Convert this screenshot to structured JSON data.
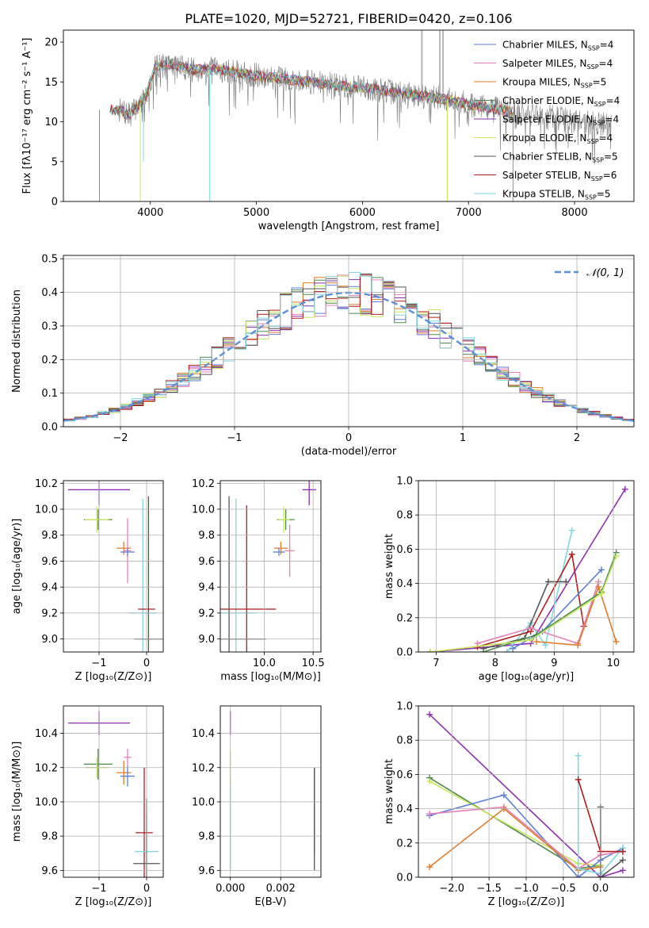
{
  "figure": {
    "title": "PLATE=1020, MJD=52721, FIBERID=0420, z=0.106"
  },
  "colors": {
    "chabrier_miles": "#5b7fd9",
    "salpeter_miles": "#e67fb8",
    "kroupa_miles": "#e07b2a",
    "chabrier_elodie": "#4e8a4e",
    "salpeter_elodie": "#8e2fb0",
    "kroupa_elodie": "#c8e85a",
    "chabrier_stelib": "#555555",
    "salpeter_stelib": "#b01c1c",
    "kroupa_stelib": "#7fd8e0",
    "data": "#7a7a7a",
    "gauss": "#5b8fd9",
    "grid": "#b0b0b0"
  },
  "chart_data": [
    {
      "id": "spectrum",
      "type": "line",
      "xlabel": "wavelength [Angstrom, rest frame]",
      "ylabel": "Flux [fλ10⁻¹⁷ erg cm⁻² s⁻¹ A⁻¹]",
      "xlim": [
        3180,
        8560
      ],
      "ylim": [
        0,
        21.5
      ],
      "xticks": [
        4000,
        5000,
        6000,
        7000,
        8000
      ],
      "yticks": [
        0,
        5,
        10,
        15,
        20
      ],
      "grid": false,
      "legend_position": "top-right",
      "legend": [
        {
          "label": "Chabrier MILES, N",
          "sub": "SSP",
          "value": "=4",
          "color_key": "chabrier_miles"
        },
        {
          "label": "Salpeter MILES, N",
          "sub": "SSP",
          "value": "=4",
          "color_key": "salpeter_miles"
        },
        {
          "label": "Kroupa MILES, N",
          "sub": "SSP",
          "value": "=5",
          "color_key": "kroupa_miles"
        },
        {
          "label": "Chabrier ELODIE, N",
          "sub": "SSP",
          "value": "=4",
          "color_key": "chabrier_elodie"
        },
        {
          "label": "Salpeter ELODIE, N",
          "sub": "SSP",
          "value": "=4",
          "color_key": "salpeter_elodie"
        },
        {
          "label": "Kroupa ELODIE, N",
          "sub": "SSP",
          "value": "=4",
          "color_key": "kroupa_elodie"
        },
        {
          "label": "Chabrier STELIB, N",
          "sub": "SSP",
          "value": "=5",
          "color_key": "chabrier_stelib"
        },
        {
          "label": "Salpeter STELIB, N",
          "sub": "SSP",
          "value": "=6",
          "color_key": "salpeter_stelib"
        },
        {
          "label": "Kroupa STELIB, N",
          "sub": "SSP",
          "value": "=5",
          "color_key": "kroupa_stelib"
        }
      ],
      "continuum": [
        [
          3700,
          11.5
        ],
        [
          3800,
          10.8
        ],
        [
          3950,
          13
        ],
        [
          4050,
          17
        ],
        [
          4200,
          17.2
        ],
        [
          4400,
          16.5
        ],
        [
          4600,
          16.6
        ],
        [
          4800,
          16.2
        ],
        [
          5000,
          15.8
        ],
        [
          5200,
          15.5
        ],
        [
          5500,
          15
        ],
        [
          5800,
          14.5
        ],
        [
          6000,
          14.3
        ],
        [
          6300,
          13.7
        ],
        [
          6600,
          13.2
        ],
        [
          6800,
          12.8
        ],
        [
          7000,
          12.2
        ],
        [
          7300,
          11.5
        ],
        [
          7600,
          10.8
        ],
        [
          8000,
          10.1
        ],
        [
          8350,
          9.6
        ]
      ],
      "model_range": [
        3620,
        7420
      ],
      "dips": [
        {
          "x": 3520,
          "y": 0,
          "color_key": "kroupa_miles"
        },
        {
          "x": 3905,
          "y": 0,
          "color_key": "kroupa_elodie"
        },
        {
          "x": 3935,
          "y": 5,
          "color_key": "kroupa_stelib"
        },
        {
          "x": 4560,
          "y": 0,
          "color_key": "kroupa_stelib"
        },
        {
          "x": 6800,
          "y": 0,
          "color_key": "kroupa_elodie"
        },
        {
          "x": 7420,
          "y": 0,
          "color_key": "kroupa_miles"
        }
      ],
      "spikes": [
        {
          "x": 6560,
          "y": 21.5
        },
        {
          "x": 6730,
          "y": 21.5
        },
        {
          "x": 6760,
          "y": 21.5
        }
      ]
    },
    {
      "id": "residuals",
      "type": "histogram",
      "xlabel": "(data-model)/error",
      "ylabel": "Normed distribution",
      "xlim": [
        -2.5,
        2.5
      ],
      "ylim": [
        0,
        0.51
      ],
      "xticks": [
        -2,
        -1,
        0,
        1,
        2
      ],
      "yticks": [
        0.0,
        0.1,
        0.2,
        0.3,
        0.4,
        0.5
      ],
      "grid": true,
      "bin_width": 0.1,
      "legend_position": "top-right",
      "legend_label": "𝒩(0, 1)",
      "gaussian": {
        "mu": 0,
        "sigma": 1
      }
    },
    {
      "id": "age_vs_z",
      "type": "errorbar",
      "xlabel": "Z [log₁₀(Z/Z⊙)]",
      "ylabel": "age  [log₁₀(age/yr)]",
      "xlim": [
        -1.75,
        0.35
      ],
      "ylim": [
        8.9,
        10.22
      ],
      "xticks": [
        -1,
        0
      ],
      "yticks": [
        9.0,
        9.2,
        9.4,
        9.6,
        9.8,
        10.0,
        10.2
      ],
      "grid": true,
      "points": [
        {
          "color_key": "salpeter_elodie",
          "x": -1.0,
          "y": 10.15,
          "xerr": 0.65,
          "yerr": 0.12
        },
        {
          "color_key": "chabrier_elodie",
          "x": -1.02,
          "y": 9.92,
          "xerr": 0.3,
          "yerr": 0.08
        },
        {
          "color_key": "kroupa_elodie",
          "x": -1.05,
          "y": 9.92,
          "xerr": 0.25,
          "yerr": 0.1
        },
        {
          "color_key": "kroupa_miles",
          "x": -0.48,
          "y": 9.7,
          "xerr": 0.15,
          "yerr": 0.05
        },
        {
          "color_key": "salpeter_miles",
          "x": -0.4,
          "y": 9.68,
          "xerr": 0.08,
          "yerr": 0.25
        },
        {
          "color_key": "chabrier_miles",
          "x": -0.4,
          "y": 9.67,
          "xerr": 0.15,
          "yerr": 0.03
        },
        {
          "color_key": "kroupa_stelib",
          "x": -0.08,
          "y": 9.2,
          "xerr": 0.3,
          "yerr": 0.88
        },
        {
          "color_key": "salpeter_stelib",
          "x": 0.0,
          "y": 9.23,
          "xerr": 0.18,
          "yerr": 0.0
        },
        {
          "color_key": "chabrier_stelib",
          "x": 0.04,
          "y": 9.0,
          "xerr": 0.3,
          "yerr": 1.1
        }
      ]
    },
    {
      "id": "age_vs_mass",
      "type": "errorbar",
      "xlabel": "mass [log₁₀(M/M⊙)]",
      "ylabel": "",
      "xlim": [
        9.55,
        10.58
      ],
      "ylim": [
        8.9,
        10.22
      ],
      "xticks": [
        10.0,
        10.5
      ],
      "yticks": [
        9.0,
        9.2,
        9.4,
        9.6,
        9.8,
        10.0,
        10.2
      ],
      "grid": true,
      "points": [
        {
          "color_key": "salpeter_elodie",
          "x": 10.46,
          "y": 10.15,
          "xerr": 0.07,
          "yerr": 0.12
        },
        {
          "color_key": "chabrier_elodie",
          "x": 10.22,
          "y": 9.92,
          "xerr": 0.09,
          "yerr": 0.08
        },
        {
          "color_key": "kroupa_elodie",
          "x": 10.2,
          "y": 9.92,
          "xerr": 0.06,
          "yerr": 0.1
        },
        {
          "color_key": "kroupa_miles",
          "x": 10.17,
          "y": 9.7,
          "xerr": 0.07,
          "yerr": 0.05
        },
        {
          "color_key": "salpeter_miles",
          "x": 10.26,
          "y": 9.68,
          "xerr": 0.05,
          "yerr": 0.2
        },
        {
          "color_key": "chabrier_miles",
          "x": 10.15,
          "y": 9.67,
          "xerr": 0.06,
          "yerr": 0.03
        },
        {
          "color_key": "kroupa_stelib",
          "x": 9.71,
          "y": 9.2,
          "xerr": 0.21,
          "yerr": 0.88
        },
        {
          "color_key": "salpeter_stelib",
          "x": 9.82,
          "y": 9.23,
          "xerr": 0.3,
          "yerr": 0.8
        },
        {
          "color_key": "chabrier_stelib",
          "x": 9.64,
          "y": 9.0,
          "xerr": 0.38,
          "yerr": 1.1
        }
      ]
    },
    {
      "id": "weight_vs_age",
      "type": "line",
      "xlabel": "age  [log₁₀(age/yr)]",
      "ylabel": "mass weight",
      "xlim": [
        6.7,
        10.35
      ],
      "ylim": [
        0,
        1.0
      ],
      "xticks": [
        7,
        8,
        9,
        10
      ],
      "yticks": [
        0.0,
        0.2,
        0.4,
        0.6,
        0.8,
        1.0
      ],
      "grid": true,
      "series": [
        {
          "color_key": "salpeter_elodie",
          "x": [
            6.9,
            8.6,
            10.2
          ],
          "y": [
            0.0,
            0.05,
            0.95
          ]
        },
        {
          "color_key": "kroupa_stelib",
          "x": [
            8.2,
            8.6,
            8.85,
            9.3
          ],
          "y": [
            0.0,
            0.17,
            0.04,
            0.71
          ]
        },
        {
          "color_key": "chabrier_stelib",
          "x": [
            7.8,
            8.5,
            8.9,
            9.2
          ],
          "y": [
            0.02,
            0.08,
            0.41,
            0.41
          ]
        },
        {
          "color_key": "salpeter_stelib",
          "x": [
            7.7,
            8.6,
            9.3,
            9.5
          ],
          "y": [
            0.03,
            0.12,
            0.57,
            0.15
          ]
        },
        {
          "color_key": "chabrier_miles",
          "x": [
            8.3,
            8.8,
            9.8
          ],
          "y": [
            0.02,
            0.12,
            0.48
          ]
        },
        {
          "color_key": "salpeter_miles",
          "x": [
            7.7,
            8.6,
            9.4,
            9.75
          ],
          "y": [
            0.05,
            0.14,
            0.05,
            0.41
          ]
        },
        {
          "color_key": "kroupa_miles",
          "x": [
            8.7,
            9.4,
            9.75,
            10.05
          ],
          "y": [
            0.06,
            0.04,
            0.38,
            0.06
          ]
        },
        {
          "color_key": "chabrier_elodie",
          "x": [
            7.8,
            8.7,
            9.8,
            10.05
          ],
          "y": [
            0.0,
            0.1,
            0.35,
            0.58
          ]
        },
        {
          "color_key": "kroupa_elodie",
          "x": [
            6.9,
            8.6,
            9.8,
            10.05
          ],
          "y": [
            0.0,
            0.07,
            0.34,
            0.56
          ]
        }
      ]
    },
    {
      "id": "mass_vs_z",
      "type": "errorbar",
      "xlabel": "Z [log₁₀(Z/Z⊙)]",
      "ylabel": "mass [log₁₀(M/M⊙)]",
      "xlim": [
        -1.75,
        0.35
      ],
      "ylim": [
        9.56,
        10.56
      ],
      "xticks": [
        -1,
        0
      ],
      "yticks": [
        9.6,
        9.8,
        10.0,
        10.2,
        10.4
      ],
      "grid": true,
      "points": [
        {
          "color_key": "salpeter_elodie",
          "x": -1.0,
          "y": 10.46,
          "xerr": 0.65,
          "yerr": 0.07
        },
        {
          "color_key": "chabrier_elodie",
          "x": -1.02,
          "y": 10.22,
          "xerr": 0.3,
          "yerr": 0.09
        },
        {
          "color_key": "kroupa_elodie",
          "x": -1.05,
          "y": 10.2,
          "xerr": 0.25,
          "yerr": 0.06
        },
        {
          "color_key": "salpeter_miles",
          "x": -0.4,
          "y": 10.26,
          "xerr": 0.08,
          "yerr": 0.05
        },
        {
          "color_key": "kroupa_miles",
          "x": -0.48,
          "y": 10.17,
          "xerr": 0.15,
          "yerr": 0.07
        },
        {
          "color_key": "chabrier_miles",
          "x": -0.4,
          "y": 10.15,
          "xerr": 0.15,
          "yerr": 0.06
        },
        {
          "color_key": "salpeter_stelib",
          "x": -0.05,
          "y": 9.82,
          "xerr": 0.18,
          "yerr": 0.38
        },
        {
          "color_key": "kroupa_stelib",
          "x": 0.0,
          "y": 9.71,
          "xerr": 0.25,
          "yerr": 0.21
        },
        {
          "color_key": "chabrier_stelib",
          "x": 0.0,
          "y": 9.64,
          "xerr": 0.28,
          "yerr": 0.38
        }
      ]
    },
    {
      "id": "mass_vs_ebv",
      "type": "errorbar",
      "xlabel": "E(B-V)",
      "ylabel": "",
      "xlim": [
        -0.0004,
        0.0036
      ],
      "ylim": [
        9.56,
        10.56
      ],
      "xticks": [
        0.0,
        0.002
      ],
      "xtick_labels": [
        "0.000",
        "0.002"
      ],
      "yticks": [
        9.6,
        9.8,
        10.0,
        10.2,
        10.4
      ],
      "grid": true,
      "points": [
        {
          "color_key": "salpeter_elodie",
          "x": 0.0,
          "y": 10.46,
          "xerr": 0.0,
          "yerr": 0.07
        },
        {
          "color_key": "kroupa_elodie",
          "x": 0.0,
          "y": 10.2,
          "xerr": 0.0,
          "yerr": 0.1
        },
        {
          "color_key": "kroupa_stelib",
          "x": 0.0,
          "y": 9.85,
          "xerr": 0.0,
          "yerr": 0.25
        },
        {
          "color_key": "salpeter_stelib",
          "x": 0.00334,
          "y": 9.95,
          "xerr": 0.0,
          "yerr": 0.25
        },
        {
          "color_key": "chabrier_stelib",
          "x": 0.00334,
          "y": 9.9,
          "xerr": 0.0,
          "yerr": 0.3
        }
      ]
    },
    {
      "id": "weight_vs_z",
      "type": "line",
      "xlabel": "Z [log₁₀(Z/Z⊙)]",
      "ylabel": "mass weight",
      "xlim": [
        -2.45,
        0.45
      ],
      "ylim": [
        0,
        1.0
      ],
      "xticks": [
        -2.0,
        -1.5,
        -1.0,
        -0.5,
        0.0
      ],
      "yticks": [
        0.0,
        0.2,
        0.4,
        0.6,
        0.8,
        1.0
      ],
      "grid": true,
      "series": [
        {
          "color_key": "salpeter_elodie",
          "x": [
            -2.3,
            0.0,
            0.3
          ],
          "y": [
            0.95,
            0.0,
            0.04
          ]
        },
        {
          "color_key": "chabrier_elodie",
          "x": [
            -2.3,
            -0.3,
            0.0
          ],
          "y": [
            0.58,
            0.05,
            0.07
          ]
        },
        {
          "color_key": "kroupa_elodie",
          "x": [
            -2.3,
            -0.3,
            0.0
          ],
          "y": [
            0.56,
            0.08,
            0.07
          ]
        },
        {
          "color_key": "chabrier_miles",
          "x": [
            -2.3,
            -1.3,
            -0.3,
            0.0,
            0.3
          ],
          "y": [
            0.36,
            0.48,
            0.0,
            0.1,
            0.17
          ]
        },
        {
          "color_key": "salpeter_miles",
          "x": [
            -2.3,
            -1.3,
            -0.3,
            0.0,
            0.3
          ],
          "y": [
            0.37,
            0.41,
            0.05,
            0.13,
            0.15
          ]
        },
        {
          "color_key": "kroupa_miles",
          "x": [
            -2.3,
            -1.3,
            -0.3,
            0.0
          ],
          "y": [
            0.06,
            0.4,
            0.04,
            0.06
          ]
        },
        {
          "color_key": "kroupa_stelib",
          "x": [
            -0.3,
            -0.3,
            0.0,
            0.3
          ],
          "y": [
            0.71,
            0.05,
            0.02,
            0.17
          ]
        },
        {
          "color_key": "chabrier_stelib",
          "x": [
            0.0,
            0.0,
            0.3
          ],
          "y": [
            0.41,
            0.0,
            0.1
          ]
        },
        {
          "color_key": "salpeter_stelib",
          "x": [
            -0.3,
            0.0,
            0.3
          ],
          "y": [
            0.57,
            0.15,
            0.15
          ]
        }
      ]
    }
  ]
}
